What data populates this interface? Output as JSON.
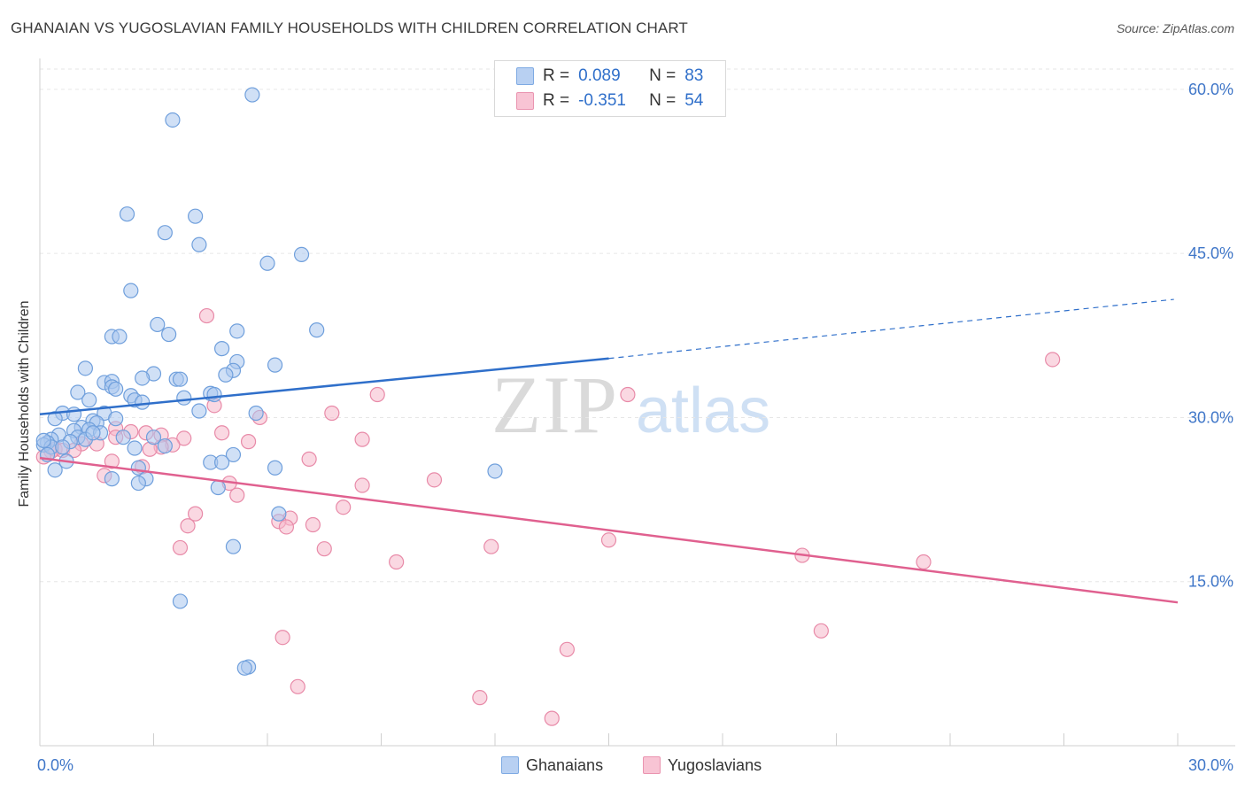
{
  "title": "GHANAIAN VS YUGOSLAVIAN FAMILY HOUSEHOLDS WITH CHILDREN CORRELATION CHART",
  "source": "Source: ZipAtlas.com",
  "watermark": {
    "part1": "ZIP",
    "part2": "atlas"
  },
  "legend": {
    "r_label": "R =",
    "n_label": "N =",
    "ghanaians": {
      "r": "0.089",
      "n": "83"
    },
    "yugoslavians": {
      "r": "-0.351",
      "n": "54"
    }
  },
  "bottom_legend": {
    "ghanaians": "Ghanaians",
    "yugoslavians": "Yugoslavians"
  },
  "colors": {
    "blue_fill": "#a9c7ef",
    "blue_stroke": "#6f9fdc",
    "blue_line": "#2f6fca",
    "pink_fill": "#f6b8cb",
    "pink_stroke": "#e88aa8",
    "pink_line": "#e0608f",
    "tick_text": "#3f76c8",
    "grid": "#e6e6e6"
  },
  "chart_data": {
    "type": "scatter",
    "title": "GHANAIAN VS YUGOSLAVIAN FAMILY HOUSEHOLDS WITH CHILDREN CORRELATION CHART",
    "xlabel": "",
    "ylabel": "Family Households with Children",
    "xlim": [
      0,
      30
    ],
    "ylim": [
      0,
      62.5
    ],
    "x_tick_labels": [
      "0.0%",
      "30.0%"
    ],
    "y_ticks": [
      15,
      30,
      45,
      60
    ],
    "y_tick_labels": [
      "15.0%",
      "30.0%",
      "45.0%",
      "60.0%"
    ],
    "grid": true,
    "series": [
      {
        "name": "Ghanaians",
        "r": 0.089,
        "n": 83,
        "trend": {
          "solid": [
            [
              0,
              30.3
            ],
            [
              15,
              35.4
            ]
          ],
          "dashed": [
            [
              15,
              35.4
            ],
            [
              29.9,
              40.8
            ]
          ]
        },
        "points": [
          [
            5.6,
            59.5
          ],
          [
            3.5,
            57.2
          ],
          [
            2.3,
            48.6
          ],
          [
            4.1,
            48.4
          ],
          [
            3.3,
            46.9
          ],
          [
            4.2,
            45.8
          ],
          [
            6.9,
            44.9
          ],
          [
            6.0,
            44.1
          ],
          [
            2.4,
            41.6
          ],
          [
            3.1,
            38.5
          ],
          [
            7.3,
            38.0
          ],
          [
            5.2,
            37.9
          ],
          [
            3.4,
            37.6
          ],
          [
            1.9,
            37.4
          ],
          [
            2.1,
            37.4
          ],
          [
            4.8,
            36.3
          ],
          [
            5.2,
            35.1
          ],
          [
            6.2,
            34.8
          ],
          [
            1.2,
            34.5
          ],
          [
            3.0,
            34.0
          ],
          [
            5.1,
            34.3
          ],
          [
            4.9,
            33.9
          ],
          [
            2.7,
            33.6
          ],
          [
            3.6,
            33.5
          ],
          [
            3.7,
            33.5
          ],
          [
            1.7,
            33.2
          ],
          [
            1.9,
            33.3
          ],
          [
            1.9,
            32.8
          ],
          [
            2.0,
            32.6
          ],
          [
            4.5,
            32.2
          ],
          [
            1.0,
            32.3
          ],
          [
            2.4,
            32.0
          ],
          [
            4.6,
            32.1
          ],
          [
            3.8,
            31.8
          ],
          [
            2.5,
            31.6
          ],
          [
            1.3,
            31.6
          ],
          [
            2.7,
            31.4
          ],
          [
            4.2,
            30.6
          ],
          [
            5.7,
            30.4
          ],
          [
            0.6,
            30.4
          ],
          [
            0.9,
            30.3
          ],
          [
            1.7,
            30.4
          ],
          [
            0.4,
            29.9
          ],
          [
            2.0,
            29.9
          ],
          [
            1.4,
            29.7
          ],
          [
            1.5,
            29.5
          ],
          [
            1.1,
            29.1
          ],
          [
            1.3,
            28.9
          ],
          [
            0.9,
            28.8
          ],
          [
            1.6,
            28.6
          ],
          [
            0.5,
            28.4
          ],
          [
            1.0,
            28.2
          ],
          [
            2.2,
            28.2
          ],
          [
            3.0,
            28.2
          ],
          [
            0.3,
            28.0
          ],
          [
            1.2,
            28.0
          ],
          [
            0.8,
            27.8
          ],
          [
            0.2,
            27.7
          ],
          [
            0.1,
            27.5
          ],
          [
            0.3,
            27.3
          ],
          [
            0.6,
            27.3
          ],
          [
            2.5,
            27.2
          ],
          [
            3.3,
            27.4
          ],
          [
            0.2,
            26.6
          ],
          [
            5.1,
            26.6
          ],
          [
            0.7,
            26.0
          ],
          [
            4.5,
            25.9
          ],
          [
            4.8,
            25.9
          ],
          [
            6.2,
            25.4
          ],
          [
            2.6,
            25.4
          ],
          [
            0.4,
            25.2
          ],
          [
            12.0,
            25.1
          ],
          [
            1.9,
            24.4
          ],
          [
            2.8,
            24.4
          ],
          [
            2.6,
            24.0
          ],
          [
            4.7,
            23.6
          ],
          [
            6.3,
            21.2
          ],
          [
            5.1,
            18.2
          ],
          [
            3.7,
            13.2
          ],
          [
            5.5,
            7.2
          ],
          [
            5.4,
            7.1
          ],
          [
            0.1,
            27.9
          ],
          [
            1.4,
            28.6
          ]
        ]
      },
      {
        "name": "Yugoslavians",
        "r": -0.351,
        "n": 54,
        "trend": {
          "solid": [
            [
              0,
              26.3
            ],
            [
              30,
              13.1
            ]
          ]
        },
        "points": [
          [
            4.4,
            39.3
          ],
          [
            26.7,
            35.3
          ],
          [
            8.9,
            32.1
          ],
          [
            15.5,
            32.1
          ],
          [
            4.6,
            31.1
          ],
          [
            7.7,
            30.4
          ],
          [
            5.8,
            30.0
          ],
          [
            2.0,
            29.0
          ],
          [
            2.4,
            28.7
          ],
          [
            4.8,
            28.6
          ],
          [
            3.2,
            28.4
          ],
          [
            3.8,
            28.1
          ],
          [
            2.0,
            28.2
          ],
          [
            8.5,
            28.0
          ],
          [
            5.5,
            27.8
          ],
          [
            1.1,
            27.6
          ],
          [
            1.5,
            27.6
          ],
          [
            3.5,
            27.5
          ],
          [
            3.2,
            27.3
          ],
          [
            0.4,
            27.1
          ],
          [
            0.6,
            27.0
          ],
          [
            0.9,
            27.0
          ],
          [
            2.9,
            27.1
          ],
          [
            0.3,
            26.9
          ],
          [
            0.1,
            26.4
          ],
          [
            7.1,
            26.2
          ],
          [
            1.9,
            26.0
          ],
          [
            2.7,
            25.5
          ],
          [
            1.7,
            24.7
          ],
          [
            10.4,
            24.3
          ],
          [
            8.5,
            23.8
          ],
          [
            5.0,
            24.0
          ],
          [
            5.2,
            22.9
          ],
          [
            8.0,
            21.8
          ],
          [
            4.1,
            21.2
          ],
          [
            6.6,
            20.8
          ],
          [
            7.2,
            20.2
          ],
          [
            6.3,
            20.5
          ],
          [
            3.9,
            20.1
          ],
          [
            6.5,
            20.0
          ],
          [
            15.0,
            18.8
          ],
          [
            11.9,
            18.2
          ],
          [
            3.7,
            18.1
          ],
          [
            7.5,
            18.0
          ],
          [
            20.1,
            17.4
          ],
          [
            23.3,
            16.8
          ],
          [
            9.4,
            16.8
          ],
          [
            20.6,
            10.5
          ],
          [
            6.4,
            9.9
          ],
          [
            13.9,
            8.8
          ],
          [
            6.8,
            5.4
          ],
          [
            11.6,
            4.4
          ],
          [
            13.5,
            2.5
          ],
          [
            2.8,
            28.6
          ]
        ]
      }
    ]
  }
}
